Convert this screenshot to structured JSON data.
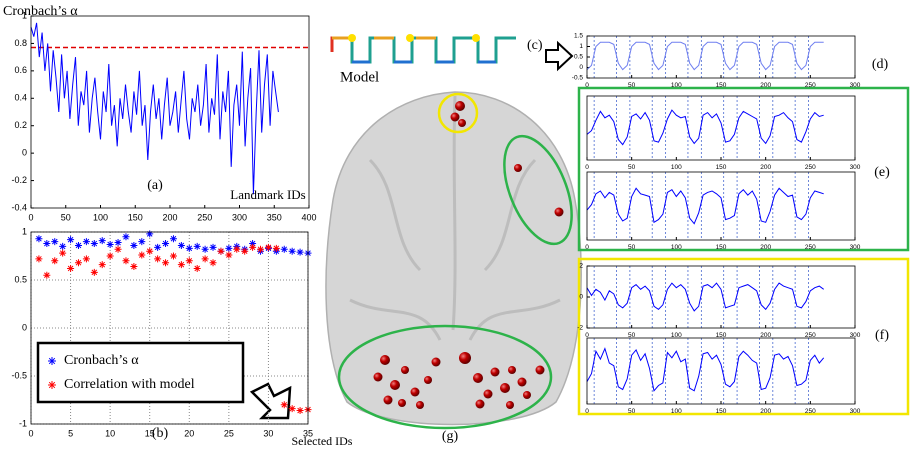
{
  "chart_data": [
    {
      "type": "line",
      "ylabel": "Cronbach’s α",
      "panel_label": "(a)",
      "xlabel": "Landmark IDs",
      "color": "#0000ff",
      "x": [
        0,
        4,
        8,
        12,
        16,
        20,
        24,
        28,
        32,
        36,
        40,
        44,
        48,
        52,
        56,
        60,
        64,
        68,
        72,
        76,
        80,
        84,
        88,
        92,
        96,
        100,
        104,
        108,
        112,
        116,
        120,
        124,
        128,
        132,
        136,
        140,
        144,
        148,
        152,
        156,
        160,
        164,
        168,
        172,
        176,
        180,
        184,
        188,
        192,
        196,
        200,
        204,
        208,
        212,
        216,
        220,
        224,
        228,
        232,
        236,
        240,
        244,
        248,
        252,
        256,
        260,
        264,
        268,
        272,
        276,
        280,
        284,
        288,
        292,
        296,
        300,
        304,
        308,
        312,
        316,
        320,
        324,
        328,
        332,
        336,
        340,
        344,
        348,
        352,
        356
      ],
      "values": [
        0.92,
        0.85,
        0.95,
        0.7,
        0.88,
        0.6,
        0.8,
        0.45,
        0.75,
        0.55,
        0.3,
        0.72,
        0.4,
        0.6,
        0.25,
        0.5,
        0.7,
        0.2,
        0.45,
        0.35,
        0.6,
        0.15,
        0.4,
        0.55,
        0.3,
        0.1,
        0.45,
        0.3,
        0.65,
        0.2,
        0.35,
        0.05,
        0.4,
        0.25,
        0.5,
        0.3,
        0.15,
        0.45,
        0.28,
        0.6,
        0.2,
        0.35,
        -0.05,
        0.3,
        0.5,
        0.25,
        0.4,
        0.1,
        0.35,
        0.55,
        0.2,
        0.3,
        0.45,
        0.15,
        0.38,
        0.6,
        0.25,
        0.1,
        0.4,
        0.3,
        0.5,
        0.2,
        0.35,
        0.65,
        0.15,
        0.4,
        0.28,
        0.72,
        0.1,
        0.45,
        0.3,
        0.6,
        -0.1,
        0.35,
        0.5,
        0.2,
        0.74,
        0.05,
        0.4,
        0.62,
        -0.3,
        0.3,
        0.75,
        0.15,
        0.5,
        0.72,
        0.2,
        0.6,
        0.45,
        0.3
      ],
      "hline": 0.77,
      "hline_color": "#e00000",
      "xlim": [
        0,
        400
      ],
      "xticks": [
        0,
        50,
        100,
        150,
        200,
        250,
        300,
        350,
        400
      ],
      "ylim": [
        -0.4,
        1
      ],
      "yticks": [
        -0.4,
        -0.2,
        0,
        0.2,
        0.4,
        0.6,
        0.8,
        1
      ]
    },
    {
      "type": "scatter",
      "panel_label": "(b)",
      "xlabel": "Selected IDs",
      "grid": true,
      "x": [
        1,
        2,
        3,
        4,
        5,
        6,
        7,
        8,
        9,
        10,
        11,
        12,
        13,
        14,
        15,
        16,
        17,
        18,
        19,
        20,
        21,
        22,
        23,
        24,
        25,
        26,
        27,
        28,
        29,
        30,
        31,
        32,
        33,
        34,
        35
      ],
      "series": [
        {
          "name": "Cronbach’s α",
          "color": "#0000ff",
          "values": [
            0.93,
            0.88,
            0.9,
            0.85,
            0.92,
            0.86,
            0.9,
            0.88,
            0.91,
            0.87,
            0.89,
            0.95,
            0.86,
            0.9,
            0.98,
            0.84,
            0.88,
            0.93,
            0.86,
            0.83,
            0.85,
            0.82,
            0.84,
            0.8,
            0.83,
            0.85,
            0.82,
            0.88,
            0.8,
            0.83,
            0.8,
            0.82,
            0.8,
            0.79,
            0.78
          ]
        },
        {
          "name": "Correlation with model",
          "color": "#ff0000",
          "values": [
            0.72,
            0.55,
            0.7,
            0.78,
            0.62,
            0.68,
            0.72,
            0.58,
            0.66,
            0.75,
            0.82,
            0.7,
            0.64,
            0.76,
            0.8,
            0.72,
            0.68,
            0.75,
            0.66,
            0.7,
            0.62,
            0.72,
            0.68,
            0.8,
            0.76,
            0.82,
            0.8,
            0.84,
            0.82,
            0.84,
            0.83,
            -0.8,
            -0.84,
            -0.86,
            -0.85
          ]
        }
      ],
      "xlim": [
        0,
        35
      ],
      "xticks": [
        0,
        5,
        10,
        15,
        20,
        25,
        30,
        35
      ],
      "ylim": [
        -1,
        1
      ],
      "yticks": [
        -1,
        -0.5,
        0,
        0.5,
        1
      ]
    },
    {
      "type": "line",
      "panel_label": "(d)",
      "color": "#6f7ff0",
      "x": [
        0,
        5,
        10,
        15,
        20,
        25,
        30,
        35,
        40,
        45,
        50,
        55,
        60,
        65,
        70,
        75,
        80,
        85,
        90,
        95,
        100,
        105,
        110,
        115,
        120,
        125,
        130,
        135,
        140,
        145,
        150,
        155,
        160,
        165,
        170,
        175,
        180,
        185,
        190,
        195,
        200,
        205,
        210,
        215,
        220,
        225,
        230,
        235,
        240,
        245,
        250,
        255,
        260,
        265
      ],
      "values": [
        -0.1,
        0.1,
        1.0,
        1.2,
        1.2,
        1.2,
        1.1,
        0.2,
        -0.1,
        0.1,
        1.0,
        1.2,
        1.2,
        1.2,
        1.1,
        0.2,
        -0.1,
        0.1,
        1.0,
        1.2,
        1.2,
        1.2,
        1.1,
        0.2,
        -0.1,
        0.1,
        1.0,
        1.2,
        1.2,
        1.2,
        1.1,
        0.2,
        -0.1,
        0.1,
        1.0,
        1.2,
        1.2,
        1.2,
        1.1,
        0.2,
        -0.1,
        0.1,
        1.0,
        1.2,
        1.2,
        1.2,
        1.1,
        0.2,
        -0.1,
        0.1,
        1.0,
        1.2,
        1.2,
        1.2
      ],
      "vlines": [
        8,
        33,
        48,
        73,
        88,
        113,
        128,
        153,
        168,
        193,
        208,
        233,
        248
      ],
      "xlim": [
        0,
        300
      ],
      "xticks": [
        0,
        50,
        100,
        150,
        200,
        250,
        300
      ],
      "ylim": [
        -0.5,
        1.5
      ],
      "yticks": [
        -0.5,
        0,
        0.5,
        1,
        1.5
      ]
    },
    {
      "type": "line",
      "panel_label": "(e)",
      "color": "#0000ff",
      "x": [
        0,
        5,
        10,
        15,
        20,
        25,
        30,
        35,
        40,
        45,
        50,
        55,
        60,
        65,
        70,
        75,
        80,
        85,
        90,
        95,
        100,
        105,
        110,
        115,
        120,
        125,
        130,
        135,
        140,
        145,
        150,
        155,
        160,
        165,
        170,
        175,
        180,
        185,
        190,
        195,
        200,
        205,
        210,
        215,
        220,
        225,
        230,
        235,
        240,
        245,
        250,
        255,
        260,
        265
      ],
      "values": [
        -0.5,
        -0.2,
        0.6,
        1.3,
        0.8,
        1.0,
        0.5,
        -0.9,
        -1.3,
        -0.7,
        0.9,
        1.1,
        0.7,
        1.2,
        0.6,
        -1.0,
        -1.1,
        -0.4,
        0.7,
        1.4,
        1.0,
        0.8,
        0.9,
        -0.7,
        -1.2,
        -0.8,
        1.0,
        1.2,
        0.8,
        1.1,
        0.4,
        -1.1,
        -1.0,
        -0.5,
        0.8,
        1.3,
        1.1,
        0.9,
        0.7,
        -0.8,
        -1.2,
        -0.6,
        0.9,
        1.0,
        1.2,
        0.8,
        0.5,
        -0.9,
        -1.1,
        -0.3,
        0.7,
        1.2,
        0.9,
        1.0
      ],
      "vlines": [
        8,
        33,
        48,
        73,
        88,
        113,
        128,
        153,
        168,
        193,
        208,
        233,
        248
      ],
      "xlim": [
        0,
        300
      ],
      "xticks": [
        0,
        50,
        100,
        150,
        200,
        250,
        300
      ],
      "ylim": [
        -2.5,
        2.5
      ]
    },
    {
      "type": "line",
      "color": "#0000ff",
      "x": [
        0,
        5,
        10,
        15,
        20,
        25,
        30,
        35,
        40,
        45,
        50,
        55,
        60,
        65,
        70,
        75,
        80,
        85,
        90,
        95,
        100,
        105,
        110,
        115,
        120,
        125,
        130,
        135,
        140,
        145,
        150,
        155,
        160,
        165,
        170,
        175,
        180,
        185,
        190,
        195,
        200,
        205,
        210,
        215,
        220,
        225,
        230,
        235,
        240,
        245,
        250,
        255,
        260,
        265
      ],
      "values": [
        -0.3,
        0.1,
        0.9,
        1.1,
        0.6,
        1.0,
        0.8,
        -0.6,
        -1.1,
        -0.9,
        0.7,
        1.3,
        0.9,
        0.8,
        0.7,
        -1.2,
        -1.0,
        -0.6,
        1.0,
        1.2,
        0.7,
        1.1,
        0.6,
        -0.9,
        -1.3,
        -0.5,
        0.8,
        1.0,
        1.1,
        0.9,
        0.6,
        -1.0,
        -0.9,
        -0.7,
        0.9,
        1.2,
        0.8,
        1.1,
        0.5,
        -1.1,
        -1.2,
        -0.4,
        0.8,
        1.3,
        1.0,
        0.7,
        0.8,
        -0.8,
        -1.0,
        -0.6,
        0.6,
        1.1,
        1.0,
        0.9
      ],
      "vlines": [
        8,
        33,
        48,
        73,
        88,
        113,
        128,
        153,
        168,
        193,
        208,
        233,
        248
      ],
      "xlim": [
        0,
        300
      ],
      "xticks": [
        0,
        50,
        100,
        150,
        200,
        250,
        300
      ],
      "ylim": [
        -2.5,
        2.5
      ]
    },
    {
      "type": "line",
      "panel_label": "(f)",
      "color": "#0000ff",
      "x": [
        0,
        5,
        10,
        15,
        20,
        25,
        30,
        35,
        40,
        45,
        50,
        55,
        60,
        65,
        70,
        75,
        80,
        85,
        90,
        95,
        100,
        105,
        110,
        115,
        120,
        125,
        130,
        135,
        140,
        145,
        150,
        155,
        160,
        165,
        170,
        175,
        180,
        185,
        190,
        195,
        200,
        205,
        210,
        215,
        220,
        225,
        230,
        235,
        240,
        245,
        250,
        255,
        260,
        265
      ],
      "values": [
        0.6,
        0.1,
        0.5,
        0.3,
        -0.2,
        0.4,
        0.2,
        -0.5,
        -0.7,
        -0.4,
        0.6,
        0.8,
        0.5,
        0.7,
        0.4,
        -0.6,
        -0.8,
        -0.5,
        0.5,
        0.9,
        0.6,
        0.8,
        0.5,
        -0.4,
        -0.9,
        -0.6,
        0.7,
        0.8,
        0.6,
        0.9,
        0.5,
        -0.7,
        -0.6,
        -0.5,
        0.6,
        0.7,
        0.8,
        0.6,
        0.4,
        -0.5,
        -0.8,
        -0.4,
        0.5,
        0.9,
        0.7,
        0.6,
        0.5,
        -0.6,
        -0.7,
        -0.3,
        0.4,
        0.6,
        0.7,
        0.5
      ],
      "vlines": [
        8,
        33,
        48,
        73,
        88,
        113,
        128,
        153,
        168,
        193,
        208,
        233,
        248
      ],
      "xlim": [
        0,
        300
      ],
      "xticks": [
        0,
        50,
        100,
        150,
        200,
        250,
        300
      ],
      "ylim": [
        -2,
        2
      ],
      "yticks": [
        -2,
        0,
        2
      ]
    },
    {
      "type": "line",
      "color": "#0000ff",
      "x": [
        0,
        5,
        10,
        15,
        20,
        25,
        30,
        35,
        40,
        45,
        50,
        55,
        60,
        65,
        70,
        75,
        80,
        85,
        90,
        95,
        100,
        105,
        110,
        115,
        120,
        125,
        130,
        135,
        140,
        145,
        150,
        155,
        160,
        165,
        170,
        175,
        180,
        185,
        190,
        195,
        200,
        205,
        210,
        215,
        220,
        225,
        230,
        235,
        240,
        245,
        250,
        255,
        260,
        265
      ],
      "values": [
        -0.8,
        -0.2,
        1.5,
        0.9,
        1.7,
        0.6,
        0.4,
        -1.2,
        -1.4,
        -0.6,
        1.2,
        1.6,
        0.8,
        1.3,
        0.2,
        -1.5,
        -1.1,
        -0.9,
        1.4,
        1.0,
        1.5,
        0.7,
        0.9,
        -1.3,
        -1.5,
        -0.4,
        1.3,
        1.4,
        0.9,
        1.2,
        0.5,
        -1.0,
        -1.2,
        -0.8,
        1.1,
        1.5,
        1.2,
        0.8,
        0.6,
        -1.4,
        -1.3,
        -0.5,
        1.2,
        1.3,
        0.9,
        1.1,
        0.4,
        -1.1,
        -1.0,
        -0.7,
        0.8,
        1.2,
        0.6,
        1.0
      ],
      "vlines": [
        8,
        33,
        48,
        73,
        88,
        113,
        128,
        153,
        168,
        193,
        208,
        233,
        248
      ],
      "xlim": [
        0,
        300
      ],
      "xticks": [
        0,
        50,
        100,
        150,
        200,
        250,
        300
      ],
      "ylim": [
        -2.5,
        2.5
      ]
    }
  ],
  "figure": {
    "model_label": "Model",
    "c_label": "(c)",
    "g_label": "(g)"
  }
}
